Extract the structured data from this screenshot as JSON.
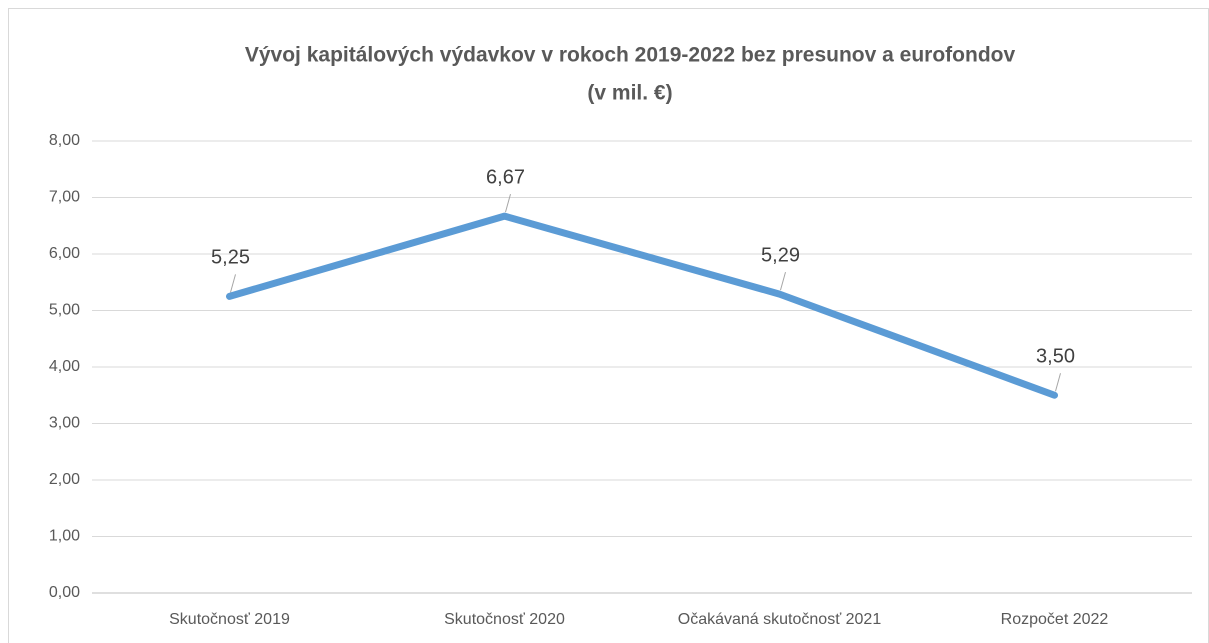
{
  "chart_data": {
    "type": "line",
    "title": "Vývoj kapitálových výdavkov v rokoch 2019-2022 bez presunov a eurofondov",
    "subtitle": "(v mil. €)",
    "categories": [
      "Skutočnosť 2019",
      "Skutočnosť 2020",
      "Očakávaná skutočnosť 2021",
      "Rozpočet 2022"
    ],
    "values": [
      5.25,
      6.67,
      5.29,
      3.5
    ],
    "value_labels": [
      "5,25",
      "6,67",
      "5,29",
      "3,50"
    ],
    "color": "#5b9bd5",
    "ylim": [
      0,
      8
    ],
    "yticks": [
      {
        "value": 0,
        "label": "0,00"
      },
      {
        "value": 1,
        "label": "1,00"
      },
      {
        "value": 2,
        "label": "2,00"
      },
      {
        "value": 3,
        "label": "3,00"
      },
      {
        "value": 4,
        "label": "4,00"
      },
      {
        "value": 5,
        "label": "5,00"
      },
      {
        "value": 6,
        "label": "6,00"
      },
      {
        "value": 7,
        "label": "7,00"
      },
      {
        "value": 8,
        "label": "8,00"
      }
    ],
    "grid": true
  }
}
